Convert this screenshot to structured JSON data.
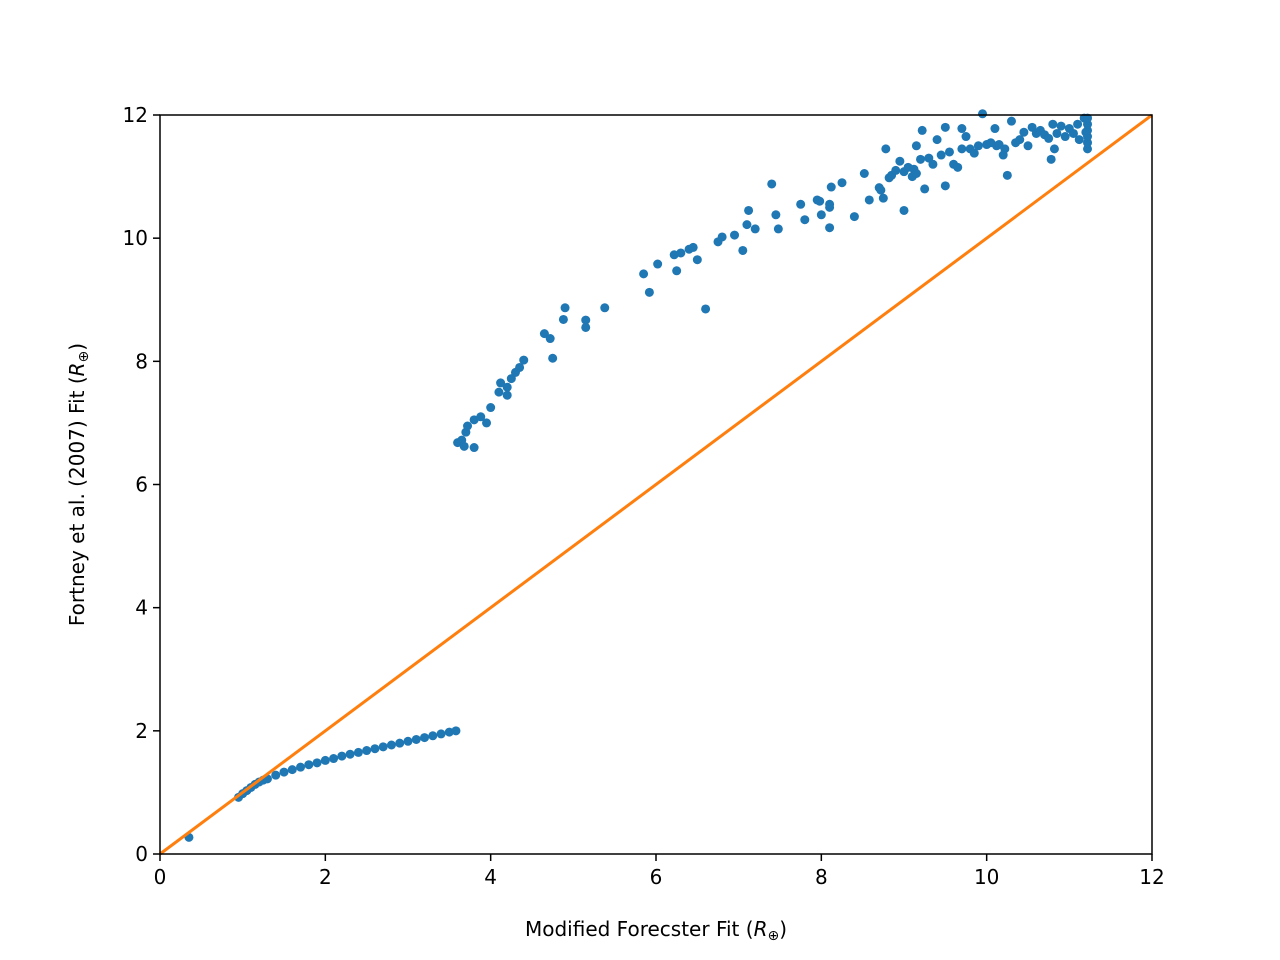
{
  "chart_data": {
    "type": "scatter",
    "title": "",
    "xlabel": "Modified Forecster Fit",
    "xlabel_unit_symbol": "R",
    "xlabel_unit_sub": "⊕",
    "ylabel": "Fortney et al. (2007) Fit",
    "ylabel_unit_symbol": "R",
    "ylabel_unit_sub": "⊕",
    "xlim": [
      0,
      12
    ],
    "ylim": [
      0,
      12
    ],
    "xticks": [
      "0",
      "2",
      "4",
      "6",
      "8",
      "10",
      "12"
    ],
    "yticks": [
      "0",
      "2",
      "4",
      "6",
      "8",
      "10",
      "12"
    ],
    "grid": false,
    "legend": "none",
    "colors": {
      "points": "#1f77b4",
      "line": "#ff7f0e"
    },
    "reference_line": {
      "name": "",
      "x": [
        0,
        12
      ],
      "y": [
        0,
        12
      ]
    },
    "series": [
      {
        "name": "",
        "points": [
          [
            0.35,
            0.27
          ],
          [
            0.95,
            0.92
          ],
          [
            1.0,
            0.98
          ],
          [
            1.05,
            1.03
          ],
          [
            1.1,
            1.08
          ],
          [
            1.15,
            1.13
          ],
          [
            1.2,
            1.17
          ],
          [
            1.25,
            1.2
          ],
          [
            1.3,
            1.22
          ],
          [
            1.4,
            1.28
          ],
          [
            1.5,
            1.33
          ],
          [
            1.6,
            1.37
          ],
          [
            1.7,
            1.41
          ],
          [
            1.8,
            1.45
          ],
          [
            1.9,
            1.48
          ],
          [
            2.0,
            1.52
          ],
          [
            2.1,
            1.55
          ],
          [
            2.2,
            1.59
          ],
          [
            2.3,
            1.62
          ],
          [
            2.4,
            1.65
          ],
          [
            2.5,
            1.68
          ],
          [
            2.6,
            1.71
          ],
          [
            2.7,
            1.74
          ],
          [
            2.8,
            1.77
          ],
          [
            2.9,
            1.8
          ],
          [
            3.0,
            1.83
          ],
          [
            3.1,
            1.86
          ],
          [
            3.2,
            1.89
          ],
          [
            3.3,
            1.92
          ],
          [
            3.4,
            1.95
          ],
          [
            3.5,
            1.98
          ],
          [
            3.58,
            2.0
          ],
          [
            3.6,
            6.68
          ],
          [
            3.65,
            6.72
          ],
          [
            3.68,
            6.62
          ],
          [
            3.7,
            6.85
          ],
          [
            3.72,
            6.95
          ],
          [
            3.8,
            6.6
          ],
          [
            3.8,
            7.05
          ],
          [
            3.88,
            7.1
          ],
          [
            3.95,
            7.0
          ],
          [
            4.0,
            7.25
          ],
          [
            4.1,
            7.5
          ],
          [
            4.12,
            7.65
          ],
          [
            4.2,
            7.45
          ],
          [
            4.2,
            7.58
          ],
          [
            4.25,
            7.72
          ],
          [
            4.3,
            7.82
          ],
          [
            4.35,
            7.9
          ],
          [
            4.4,
            8.02
          ],
          [
            4.65,
            8.45
          ],
          [
            4.72,
            8.37
          ],
          [
            4.75,
            8.05
          ],
          [
            4.88,
            8.68
          ],
          [
            4.9,
            8.87
          ],
          [
            5.15,
            8.67
          ],
          [
            5.15,
            8.55
          ],
          [
            5.38,
            8.87
          ],
          [
            5.85,
            9.42
          ],
          [
            5.92,
            9.12
          ],
          [
            6.02,
            9.58
          ],
          [
            6.22,
            9.73
          ],
          [
            6.25,
            9.47
          ],
          [
            6.3,
            9.76
          ],
          [
            6.4,
            9.82
          ],
          [
            6.45,
            9.85
          ],
          [
            6.5,
            9.65
          ],
          [
            6.6,
            8.85
          ],
          [
            6.75,
            9.94
          ],
          [
            6.8,
            10.02
          ],
          [
            6.95,
            10.05
          ],
          [
            7.05,
            9.8
          ],
          [
            7.1,
            10.22
          ],
          [
            7.12,
            10.45
          ],
          [
            7.2,
            10.15
          ],
          [
            7.4,
            10.88
          ],
          [
            7.45,
            10.38
          ],
          [
            7.48,
            10.15
          ],
          [
            7.75,
            10.55
          ],
          [
            7.8,
            10.3
          ],
          [
            7.95,
            10.62
          ],
          [
            7.98,
            10.6
          ],
          [
            8.0,
            10.38
          ],
          [
            8.1,
            10.5
          ],
          [
            8.1,
            10.55
          ],
          [
            8.1,
            10.17
          ],
          [
            8.12,
            10.83
          ],
          [
            8.25,
            10.9
          ],
          [
            8.4,
            10.35
          ],
          [
            8.52,
            11.05
          ],
          [
            8.58,
            10.62
          ],
          [
            8.7,
            10.82
          ],
          [
            8.72,
            10.78
          ],
          [
            8.75,
            10.65
          ],
          [
            8.78,
            11.45
          ],
          [
            8.82,
            10.98
          ],
          [
            8.85,
            11.02
          ],
          [
            8.9,
            11.1
          ],
          [
            8.95,
            11.25
          ],
          [
            9.0,
            10.45
          ],
          [
            9.0,
            11.08
          ],
          [
            9.05,
            11.15
          ],
          [
            9.1,
            11.0
          ],
          [
            9.12,
            11.12
          ],
          [
            9.15,
            11.05
          ],
          [
            9.2,
            11.28
          ],
          [
            9.15,
            11.5
          ],
          [
            9.22,
            11.75
          ],
          [
            9.25,
            10.8
          ],
          [
            9.3,
            11.3
          ],
          [
            9.35,
            11.2
          ],
          [
            9.4,
            11.6
          ],
          [
            9.45,
            11.35
          ],
          [
            9.5,
            11.8
          ],
          [
            9.5,
            10.85
          ],
          [
            9.55,
            11.4
          ],
          [
            9.6,
            11.2
          ],
          [
            9.65,
            11.15
          ],
          [
            9.7,
            11.45
          ],
          [
            9.7,
            11.78
          ],
          [
            9.75,
            11.65
          ],
          [
            9.8,
            11.45
          ],
          [
            9.85,
            11.38
          ],
          [
            9.9,
            11.5
          ],
          [
            9.95,
            12.02
          ],
          [
            10.0,
            11.52
          ],
          [
            10.05,
            11.55
          ],
          [
            10.1,
            11.78
          ],
          [
            10.12,
            11.5
          ],
          [
            10.15,
            11.52
          ],
          [
            10.2,
            11.35
          ],
          [
            10.22,
            11.45
          ],
          [
            10.25,
            11.02
          ],
          [
            10.3,
            11.9
          ],
          [
            10.35,
            11.55
          ],
          [
            10.4,
            11.6
          ],
          [
            10.45,
            11.72
          ],
          [
            10.5,
            11.5
          ],
          [
            10.55,
            11.8
          ],
          [
            10.6,
            11.7
          ],
          [
            10.65,
            11.75
          ],
          [
            10.7,
            11.68
          ],
          [
            10.75,
            11.62
          ],
          [
            10.78,
            11.28
          ],
          [
            10.8,
            11.85
          ],
          [
            10.82,
            11.45
          ],
          [
            10.85,
            11.7
          ],
          [
            10.9,
            11.82
          ],
          [
            10.95,
            11.65
          ],
          [
            11.0,
            11.78
          ],
          [
            11.05,
            11.7
          ],
          [
            11.1,
            11.85
          ],
          [
            11.12,
            11.6
          ],
          [
            11.18,
            11.95
          ],
          [
            11.2,
            11.72
          ],
          [
            11.22,
            11.45
          ],
          [
            11.22,
            11.55
          ],
          [
            11.22,
            11.65
          ],
          [
            11.22,
            11.75
          ],
          [
            11.22,
            11.85
          ],
          [
            11.22,
            11.95
          ]
        ]
      }
    ]
  }
}
